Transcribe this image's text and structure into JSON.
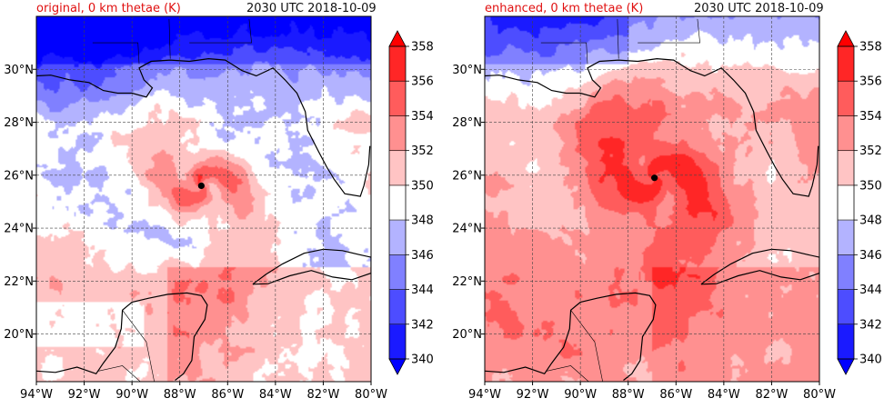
{
  "panels": [
    {
      "title": "original, 0 km thetae (K)",
      "time": "2030 UTC 2018-10-09",
      "storm_center": {
        "lon": -87.1,
        "lat": 25.6
      },
      "field_character": "original"
    },
    {
      "title": "enhanced, 0 km thetae (K)",
      "time": "2030 UTC 2018-10-09",
      "storm_center": {
        "lon": -86.9,
        "lat": 25.9
      },
      "field_character": "enhanced"
    }
  ],
  "chart_data": {
    "type": "heatmap",
    "variable": "0 km thetae (K)",
    "xlim": [
      -94,
      -80
    ],
    "ylim": [
      18.2,
      32.0
    ],
    "x_ticks": [
      -94,
      -92,
      -90,
      -88,
      -86,
      -84,
      -82,
      -80
    ],
    "x_tick_labels": [
      "94°W",
      "92°W",
      "90°W",
      "88°W",
      "86°W",
      "84°W",
      "82°W",
      "80°W"
    ],
    "y_ticks": [
      20,
      22,
      24,
      26,
      28,
      30
    ],
    "y_tick_labels": [
      "20°N",
      "22°N",
      "24°N",
      "26°N",
      "28°N",
      "30°N"
    ],
    "grid": true,
    "colorbar": {
      "levels": [
        340,
        342,
        344,
        346,
        348,
        350,
        352,
        354,
        356,
        358
      ],
      "tick_labels": [
        "340",
        "342",
        "344",
        "346",
        "348",
        "350",
        "352",
        "354",
        "356",
        "358"
      ],
      "colors": [
        "#1a1aff",
        "#4d4dff",
        "#8080ff",
        "#b3b3ff",
        "#ffffff",
        "#ffc4c4",
        "#ff9090",
        "#ff5c5c",
        "#ff2626"
      ],
      "under_color": "#0000ff",
      "over_color": "#ff0000",
      "extend": "both",
      "placement": "right"
    }
  }
}
